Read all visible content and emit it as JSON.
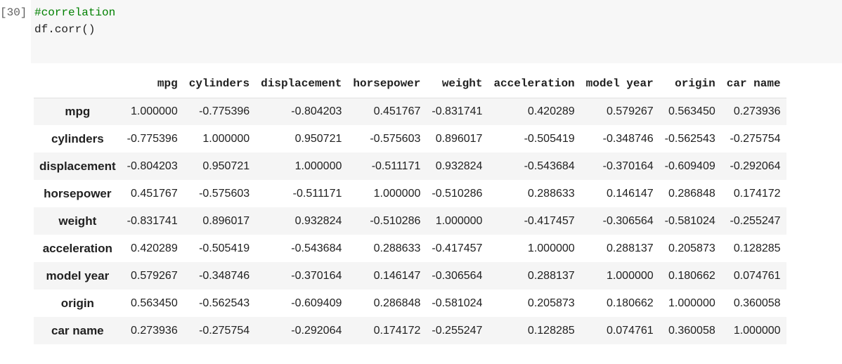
{
  "cell": {
    "prompt": "[30]",
    "comment": "#correlation",
    "code": "df.corr()"
  },
  "table": {
    "columns": [
      "mpg",
      "cylinders",
      "displacement",
      "horsepower",
      "weight",
      "acceleration",
      "model year",
      "origin",
      "car name"
    ],
    "rows": [
      {
        "label": "mpg",
        "values": [
          "1.000000",
          "-0.775396",
          "-0.804203",
          "0.451767",
          "-0.831741",
          "0.420289",
          "0.579267",
          "0.563450",
          "0.273936"
        ]
      },
      {
        "label": "cylinders",
        "values": [
          "-0.775396",
          "1.000000",
          "0.950721",
          "-0.575603",
          "0.896017",
          "-0.505419",
          "-0.348746",
          "-0.562543",
          "-0.275754"
        ]
      },
      {
        "label": "displacement",
        "values": [
          "-0.804203",
          "0.950721",
          "1.000000",
          "-0.511171",
          "0.932824",
          "-0.543684",
          "-0.370164",
          "-0.609409",
          "-0.292064"
        ]
      },
      {
        "label": "horsepower",
        "values": [
          "0.451767",
          "-0.575603",
          "-0.511171",
          "1.000000",
          "-0.510286",
          "0.288633",
          "0.146147",
          "0.286848",
          "0.174172"
        ]
      },
      {
        "label": "weight",
        "values": [
          "-0.831741",
          "0.896017",
          "0.932824",
          "-0.510286",
          "1.000000",
          "-0.417457",
          "-0.306564",
          "-0.581024",
          "-0.255247"
        ]
      },
      {
        "label": "acceleration",
        "values": [
          "0.420289",
          "-0.505419",
          "-0.543684",
          "0.288633",
          "-0.417457",
          "1.000000",
          "0.288137",
          "0.205873",
          "0.128285"
        ]
      },
      {
        "label": "model year",
        "values": [
          "0.579267",
          "-0.348746",
          "-0.370164",
          "0.146147",
          "-0.306564",
          "0.288137",
          "1.000000",
          "0.180662",
          "0.074761"
        ]
      },
      {
        "label": "origin",
        "values": [
          "0.563450",
          "-0.562543",
          "-0.609409",
          "0.286848",
          "-0.581024",
          "0.205873",
          "0.180662",
          "1.000000",
          "0.360058"
        ]
      },
      {
        "label": "car name",
        "values": [
          "0.273936",
          "-0.275754",
          "-0.292064",
          "0.174172",
          "-0.255247",
          "0.128285",
          "0.074761",
          "0.360058",
          "1.000000"
        ]
      }
    ]
  }
}
